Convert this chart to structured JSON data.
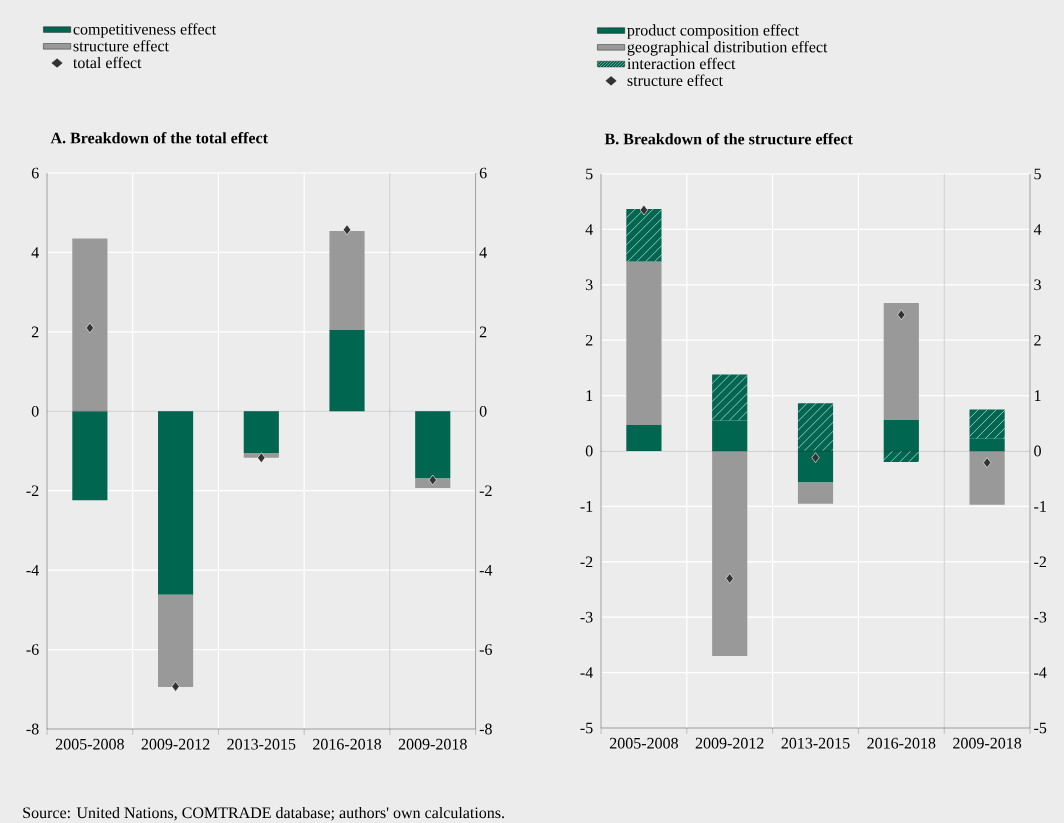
{
  "chart_data": [
    {
      "type": "bar",
      "stacked": true,
      "title": "A. Breakdown of the total effect",
      "categories": [
        "2005-2008",
        "2009-2012",
        "2013-2015",
        "2016-2018",
        "2009-2018"
      ],
      "series": [
        {
          "name": "competitiveness effect",
          "color": "#006650",
          "values": [
            -2.24,
            -4.62,
            -1.05,
            2.06,
            -1.69
          ]
        },
        {
          "name": "structure effect",
          "color": "#999999",
          "values": [
            4.35,
            -2.32,
            -0.12,
            2.48,
            -0.24
          ]
        },
        {
          "name": "total effect",
          "type": "scatter",
          "marker": "diamond",
          "color": "#333333",
          "values": [
            2.1,
            -6.93,
            -1.17,
            4.57,
            -1.73
          ]
        }
      ],
      "ylim": [
        -8,
        6
      ],
      "yticks": [
        -8,
        -6,
        -4,
        -2,
        0,
        2,
        4,
        6
      ],
      "y2lim": [
        -8,
        6
      ],
      "y2ticks": [
        -8,
        -6,
        -4,
        -2,
        0,
        2,
        4,
        6
      ],
      "grid": true,
      "legend": "top left",
      "annotations": [
        "Source: United Nations, COMTRADE database; authors' own calculations."
      ]
    },
    {
      "type": "bar",
      "stacked": true,
      "title": "B. Breakdown of the structure effect",
      "categories": [
        "2005-2008",
        "2009-2012",
        "2013-2015",
        "2016-2018",
        "2009-2018"
      ],
      "series": [
        {
          "name": "product composition effect",
          "color": "#006650",
          "values": [
            0.47,
            0.55,
            -0.57,
            0.56,
            0.22
          ]
        },
        {
          "name": "geographical distribution effect",
          "color": "#999999",
          "values": [
            2.95,
            -3.7,
            -0.38,
            2.11,
            -0.97
          ]
        },
        {
          "name": "interaction effect",
          "color": "#006650",
          "values": [
            0.95,
            0.83,
            0.86,
            -0.2,
            0.53
          ]
        },
        {
          "name": "structure effect",
          "type": "scatter",
          "marker": "diamond",
          "color": "#333333",
          "values": [
            4.35,
            -2.3,
            -0.12,
            2.46,
            -0.21
          ]
        }
      ],
      "ylim": [
        -5,
        5
      ],
      "yticks": [
        -5,
        -4,
        -3,
        -2,
        -1,
        0,
        1,
        2,
        3,
        4,
        5
      ],
      "y2lim": [
        -5,
        5
      ],
      "y2ticks": [
        -5,
        -4,
        -3,
        -2,
        -1,
        0,
        1,
        2,
        3,
        4,
        5
      ],
      "grid": true,
      "legend": "top left"
    }
  ]
}
